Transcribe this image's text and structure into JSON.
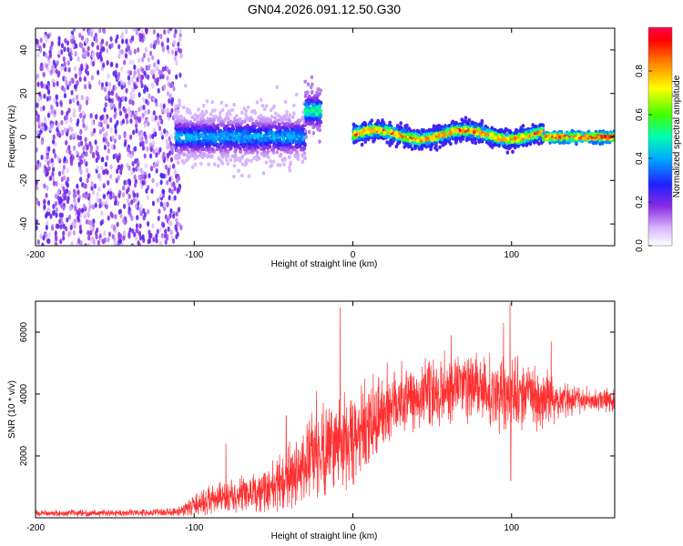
{
  "figure_title": "GN04.2026.091.12.50.G30",
  "colors": {
    "snr_line": "#ff3030",
    "axis": "#000000",
    "spectrogram_scale": [
      "#ffffff",
      "#e6d2ff",
      "#b98cff",
      "#7a00ff",
      "#2020ff",
      "#00aaff",
      "#00ffb0",
      "#40ff00",
      "#ffff00",
      "#ff8000",
      "#ff0000",
      "#ff0050"
    ]
  },
  "chart_data": [
    {
      "type": "heatmap",
      "title": "",
      "xlabel": "Height of straight line (km)",
      "ylabel": "Frequency (Hz)",
      "xlim": [
        -200,
        165
      ],
      "ylim": [
        -50,
        50
      ],
      "xticks": [
        -200,
        -100,
        0,
        100
      ],
      "yticks": [
        -40,
        -20,
        0,
        20,
        40
      ],
      "colorbar": {
        "label": "Normalized spectral amplitude",
        "range": [
          0,
          1
        ],
        "ticks": [
          0.0,
          0.2,
          0.4,
          0.6,
          0.8
        ]
      },
      "regions": [
        {
          "name": "noise",
          "x_range": [
            -200,
            -108
          ],
          "freq_range": [
            -50,
            50
          ],
          "amplitude": [
            0.05,
            0.25
          ]
        },
        {
          "name": "weak-signal",
          "x_range": [
            -112,
            -30
          ],
          "freq_center": 0,
          "freq_spread": 12,
          "amplitude": [
            0.2,
            0.45
          ]
        },
        {
          "name": "transition-spike",
          "x_range": [
            -30,
            -20
          ],
          "freq_center": 12,
          "freq_spread": 10,
          "amplitude": [
            0.3,
            0.6
          ]
        },
        {
          "name": "strong-signal",
          "x_range": [
            0,
            120
          ],
          "freq_center": 1,
          "freq_spread": 4,
          "amplitude": [
            0.6,
            0.95
          ]
        },
        {
          "name": "flat-line",
          "x_range": [
            120,
            165
          ],
          "freq_center": 0,
          "freq_spread": 2,
          "amplitude": [
            0.85,
            1.0
          ]
        }
      ]
    },
    {
      "type": "line",
      "title": "",
      "xlabel": "Height of straight line (km)",
      "ylabel": "SNR (10 * v/v)",
      "xlim": [
        -200,
        165
      ],
      "ylim": [
        0,
        7000
      ],
      "xticks": [
        -200,
        -100,
        0,
        100
      ],
      "yticks": [
        2000,
        4000,
        6000
      ],
      "series": [
        {
          "name": "SNR",
          "x": [
            -200,
            -175,
            -150,
            -125,
            -110,
            -100,
            -90,
            -80,
            -70,
            -60,
            -50,
            -40,
            -30,
            -20,
            -10,
            0,
            10,
            20,
            30,
            40,
            50,
            60,
            70,
            80,
            90,
            100,
            110,
            120,
            130,
            140,
            150,
            165
          ],
          "mean": [
            150,
            150,
            160,
            170,
            200,
            400,
            550,
            650,
            700,
            800,
            1000,
            1300,
            1700,
            2200,
            2500,
            2400,
            2900,
            3500,
            3900,
            3900,
            4000,
            4200,
            4300,
            4100,
            4000,
            4000,
            4000,
            3900,
            3800,
            3800,
            3800,
            3800
          ],
          "spread": [
            120,
            120,
            130,
            130,
            200,
            400,
            600,
            600,
            700,
            800,
            1000,
            1300,
            1500,
            1800,
            1900,
            1900,
            1800,
            1700,
            1500,
            1400,
            1400,
            1500,
            1500,
            1400,
            1400,
            1400,
            1300,
            1100,
            800,
            600,
            500,
            500
          ],
          "spikes": [
            {
              "x": -80,
              "y": 2400
            },
            {
              "x": -42,
              "y": 3300
            },
            {
              "x": -23,
              "y": 4100
            },
            {
              "x": -8,
              "y": 6800
            },
            {
              "x": 15,
              "y": 2100
            },
            {
              "x": 62,
              "y": 5900
            },
            {
              "x": 95,
              "y": 6300
            },
            {
              "x": 99,
              "y": 6950
            },
            {
              "x": 99.5,
              "y": 1200
            },
            {
              "x": 125,
              "y": 5700
            }
          ]
        }
      ]
    }
  ]
}
